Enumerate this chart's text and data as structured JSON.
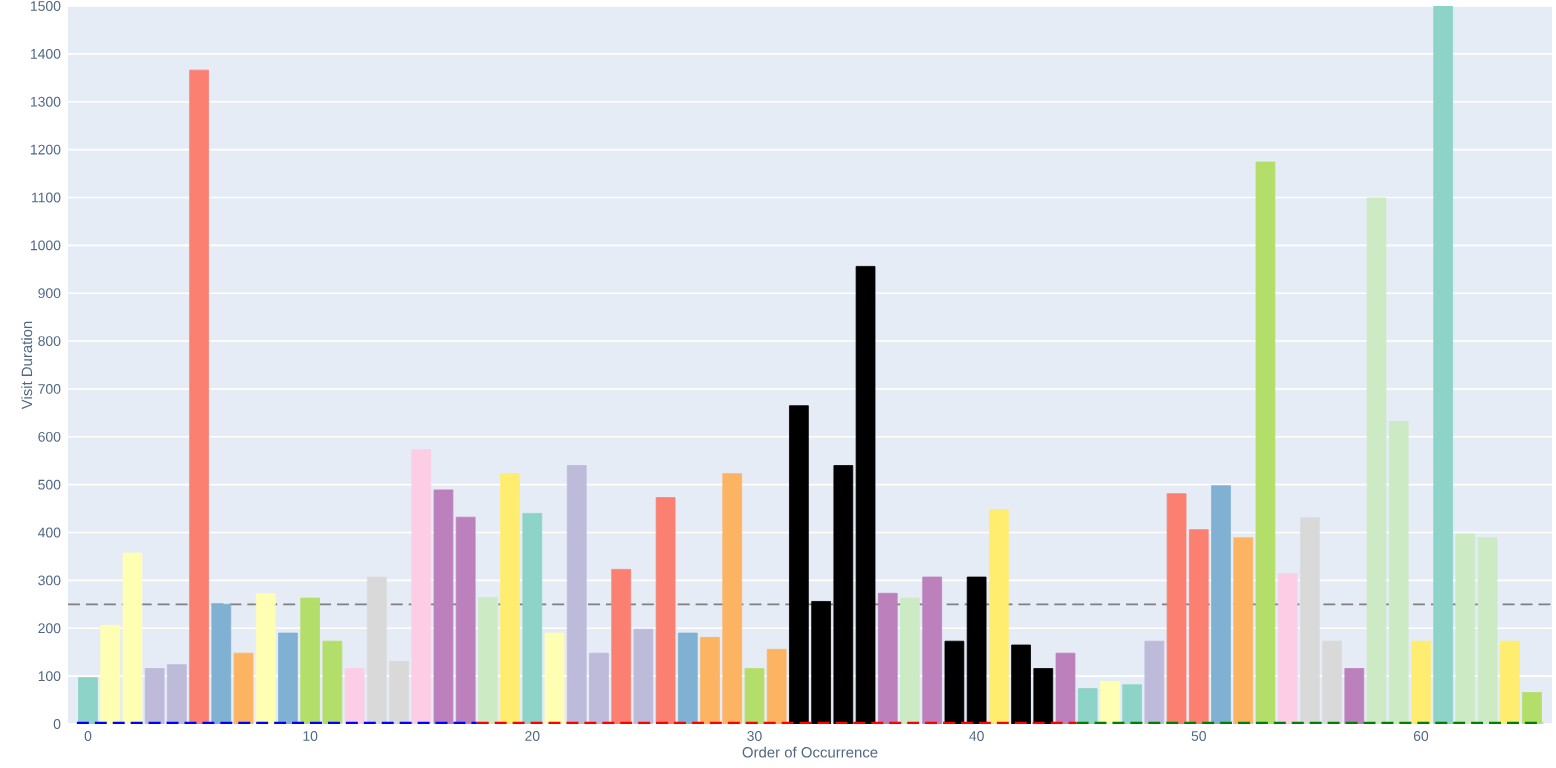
{
  "chart_data": {
    "type": "bar",
    "xlabel": "Order of Occurrence",
    "ylabel": "Visit Duration",
    "x": [
      0,
      1,
      2,
      3,
      4,
      5,
      6,
      7,
      8,
      9,
      10,
      11,
      12,
      13,
      14,
      15,
      16,
      17,
      18,
      19,
      20,
      21,
      22,
      23,
      24,
      25,
      26,
      27,
      28,
      29,
      30,
      31,
      32,
      33,
      34,
      35,
      36,
      37,
      38,
      39,
      40,
      41,
      42,
      43,
      44,
      45,
      46,
      47,
      48,
      49,
      50,
      51,
      52,
      53,
      54,
      55,
      56,
      57,
      58,
      59,
      60,
      61,
      62,
      63,
      64,
      65
    ],
    "series": [
      {
        "values": [
          97,
          206,
          357,
          116,
          124,
          1366,
          250,
          148,
          272,
          190,
          263,
          173,
          116,
          307,
          131,
          573,
          489,
          432,
          264,
          523,
          440,
          190,
          540,
          148,
          323,
          198,
          473,
          190,
          181,
          523,
          116,
          156,
          665,
          256,
          540,
          956,
          273,
          263,
          307,
          173,
          307,
          448,
          165,
          116,
          148,
          74,
          89,
          82,
          173,
          481,
          406,
          498,
          389,
          1174,
          314,
          431,
          173,
          116,
          1099,
          632,
          173,
          1500,
          397,
          389,
          173,
          66
        ],
        "colors": [
          "#8dd3c7",
          "#ffffb3",
          "#ffffb3",
          "#bebada",
          "#bebada",
          "#fb8072",
          "#80b1d3",
          "#fdb462",
          "#ffffb3",
          "#80b1d3",
          "#b3de69",
          "#b3de69",
          "#fccde5",
          "#d9d9d9",
          "#d9d9d9",
          "#fccde5",
          "#bc80bd",
          "#bc80bd",
          "#ccebc5",
          "#ffed6f",
          "#8dd3c7",
          "#ffffb3",
          "#bebada",
          "#bebada",
          "#fb8072",
          "#bebada",
          "#fb8072",
          "#80b1d3",
          "#fdb462",
          "#fdb462",
          "#b3de69",
          "#fdb462",
          "#000000",
          "#000000",
          "#000000",
          "#000000",
          "#bc80bd",
          "#ccebc5",
          "#bc80bd",
          "#000000",
          "#000000",
          "#ffed6f",
          "#000000",
          "#000000",
          "#bc80bd",
          "#8dd3c7",
          "#ffffb3",
          "#8dd3c7",
          "#bebada",
          "#fb8072",
          "#fb8072",
          "#80b1d3",
          "#fdb462",
          "#b3de69",
          "#fccde5",
          "#d9d9d9",
          "#d9d9d9",
          "#bc80bd",
          "#ccebc5",
          "#ccebc5",
          "#ffed6f",
          "#8dd3c7",
          "#ccebc5",
          "#ccebc5",
          "#ffed6f",
          "#b3de69"
        ]
      },
      {
        "type": "line",
        "x": [
          -0.5,
          17.5
        ],
        "values": [
          0,
          0
        ],
        "color": "#0000ff",
        "line_style": "dashed"
      },
      {
        "type": "line",
        "x": [
          17.5,
          44.5
        ],
        "values": [
          0,
          0
        ],
        "color": "#ff0000",
        "line_style": "dashed"
      },
      {
        "type": "line",
        "x": [
          44.5,
          65.5
        ],
        "values": [
          0,
          0
        ],
        "color": "#008000",
        "line_style": "dashed"
      }
    ],
    "xlim": [
      -0.9,
      65.9
    ],
    "xticks": [
      0,
      10,
      20,
      30,
      40,
      50,
      60
    ],
    "ylim": [
      0,
      1500
    ],
    "yticks": [
      0,
      100,
      200,
      300,
      400,
      500,
      600,
      700,
      800,
      900,
      1000,
      1100,
      1200,
      1300,
      1400,
      1500
    ],
    "grid": "y",
    "marker": "none",
    "ref_lines": [
      {
        "axis": "y",
        "value": 250,
        "color": "#808080",
        "line_style": "dashed"
      }
    ]
  }
}
